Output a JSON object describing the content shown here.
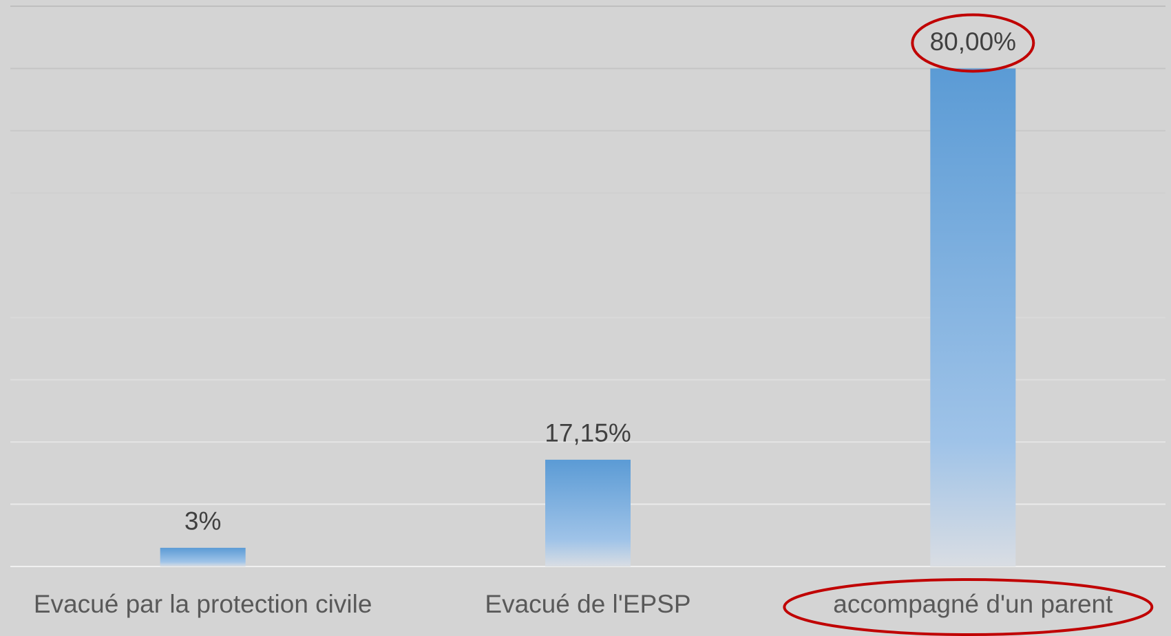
{
  "chart_data": {
    "type": "bar",
    "categories": [
      "Evacué par la protection civile",
      "Evacué de l'EPSP",
      "accompagné d'un parent"
    ],
    "values": [
      3,
      17.15,
      80
    ],
    "value_labels": [
      "3%",
      "17,15%",
      "80,00%"
    ],
    "color": "#5b9bd5",
    "ylim": [
      0,
      90
    ],
    "yticks": [
      0,
      10,
      20,
      30,
      40,
      50,
      60,
      70,
      80,
      90
    ],
    "grid": true
  }
}
